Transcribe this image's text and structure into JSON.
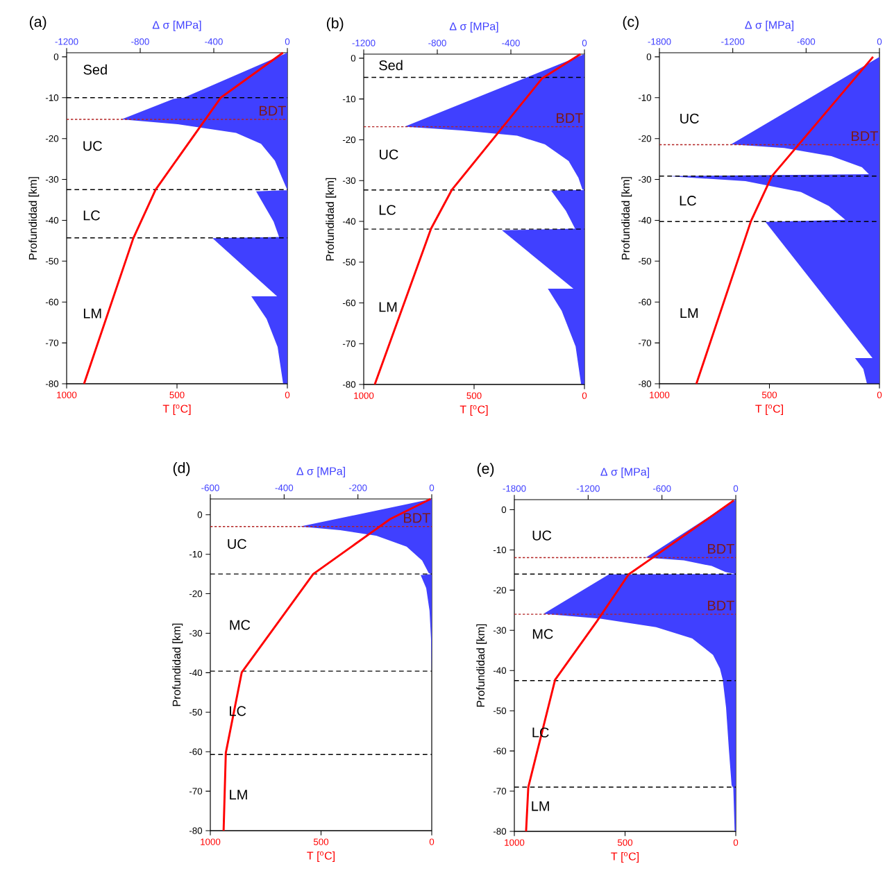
{
  "chart_data": [
    {
      "type": "area",
      "title": "(a)",
      "xlabel": "T [$^{o}$C]",
      "x2label": "Δ σ [MPa]",
      "ylabel": "Profundidad [km]",
      "xlim": [
        1000,
        0
      ],
      "xticks": [
        1000,
        500,
        0
      ],
      "x2lim": [
        -1200,
        0
      ],
      "x2ticks": [
        -1200,
        -800,
        -400,
        0
      ],
      "ylim": [
        -80,
        1
      ],
      "yticks": [
        -80,
        -70,
        -60,
        -50,
        -40,
        -30,
        -20,
        -10,
        0
      ],
      "series": [
        {
          "axis": "x2",
          "color": "#4040ff",
          "x": [
            0,
            -563,
            -619,
            -902,
            -596,
            -279,
            -143,
            -68,
            -30,
            0,
            -170,
            -75,
            -45,
            -407,
            -56,
            -196,
            -113,
            -53,
            -23,
            0
          ],
          "values": [
            1,
            -10,
            -10.3,
            -15.3,
            -16.5,
            -18.6,
            -21.3,
            -25.4,
            -29.5,
            -32.6,
            -32.9,
            -40.3,
            -44.1,
            -44.4,
            -58.6,
            -58.6,
            -64.1,
            -71,
            -80,
            -80
          ]
        },
        {
          "type": "line",
          "color": "#ff0000",
          "x": [
            20,
            302,
            597,
            698,
            921
          ],
          "values": [
            1,
            -10,
            -32.5,
            -44.4,
            -80
          ]
        }
      ],
      "ref_lines": [
        {
          "axis": "y",
          "value": -10,
          "color": "#000000",
          "line_style": "dashed"
        },
        {
          "axis": "y",
          "value": -15.3,
          "label": "BDT",
          "color": "#b22222",
          "line_style": "dotted"
        },
        {
          "axis": "y",
          "value": -32.5,
          "color": "#000000",
          "line_style": "dashed"
        },
        {
          "axis": "y",
          "value": -44.3,
          "color": "#000000",
          "line_style": "dashed"
        }
      ],
      "annotations": [
        "Sed",
        "UC",
        "LC",
        "LM"
      ]
    },
    {
      "type": "area",
      "title": "(b)",
      "xlabel": "T [$^{o}$C]",
      "x2label": "Δ σ [MPa]",
      "ylabel": "Profundidad [km]",
      "xlim": [
        1000,
        0
      ],
      "xticks": [
        1000,
        500,
        0
      ],
      "x2lim": [
        -1200,
        0
      ],
      "x2ticks": [
        -1200,
        -800,
        -400,
        0
      ],
      "ylim": [
        -80,
        1
      ],
      "yticks": [
        -80,
        -70,
        -60,
        -50,
        -40,
        -30,
        -20,
        -10,
        0
      ],
      "series": [
        {
          "axis": "x2",
          "color": "#4040ff",
          "x": [
            0,
            -978,
            -668,
            -366,
            -215,
            -86,
            -33,
            -11,
            0,
            -181,
            -101,
            -51,
            -449,
            -60,
            -199,
            -124,
            -48,
            -18,
            0
          ],
          "values": [
            1,
            -16.8,
            -17.7,
            -19,
            -21.1,
            -25.2,
            -29.3,
            -32.2,
            -32.3,
            -32.5,
            -37.4,
            -41.8,
            -42.2,
            -56.5,
            -56.5,
            -61.9,
            -70.7,
            -80,
            -80
          ]
        },
        {
          "type": "line",
          "color": "#ff0000",
          "x": [
            18,
            191,
            601,
            695,
            950
          ],
          "values": [
            1,
            -4.9,
            -32.3,
            -41.8,
            -80
          ]
        }
      ],
      "ref_lines": [
        {
          "axis": "y",
          "value": -4.7,
          "color": "#000000",
          "line_style": "dashed"
        },
        {
          "axis": "y",
          "value": -16.8,
          "label": "BDT",
          "color": "#b22222",
          "line_style": "dotted"
        },
        {
          "axis": "y",
          "value": -32.3,
          "color": "#000000",
          "line_style": "dashed"
        },
        {
          "axis": "y",
          "value": -41.9,
          "color": "#000000",
          "line_style": "dashed"
        }
      ],
      "annotations": [
        "Sed",
        "UC",
        "LC",
        "LM"
      ]
    },
    {
      "type": "area",
      "title": "(c)",
      "xlabel": "T [$^{o}$C]",
      "x2label": "Δ σ [MPa]",
      "ylabel": "Profundidad [km]",
      "xlim": [
        1000,
        0
      ],
      "xticks": [
        1000,
        500,
        0
      ],
      "x2lim": [
        -1800,
        0
      ],
      "x2ticks": [
        -1800,
        -1200,
        -600,
        0
      ],
      "ylim": [
        -80,
        1
      ],
      "yticks": [
        -80,
        -70,
        -60,
        -50,
        -40,
        -30,
        -20,
        -10,
        0
      ],
      "series": [
        {
          "axis": "x2",
          "color": "#4040ff",
          "x": [
            0,
            -1214,
            -779,
            -393,
            -143,
            -86,
            -1732,
            -1096,
            -642,
            -415,
            -279,
            -933,
            -57,
            -200,
            -132,
            -102,
            0
          ],
          "values": [
            0,
            -21.4,
            -22.3,
            -24.3,
            -27,
            -28.7,
            -29.2,
            -30.4,
            -33.1,
            -36.5,
            -39.9,
            -40.4,
            -73.7,
            -73.7,
            -76.4,
            -80,
            -80
          ]
        },
        {
          "type": "line",
          "color": "#ff0000",
          "x": [
            29,
            489,
            584,
            832
          ],
          "values": [
            0,
            -29.2,
            -40.2,
            -80
          ]
        }
      ],
      "ref_lines": [
        {
          "axis": "y",
          "value": -21.5,
          "label": "BDT",
          "color": "#b22222",
          "line_style": "dotted"
        },
        {
          "axis": "y",
          "value": -29.2,
          "color": "#000000",
          "line_style": "dashed"
        },
        {
          "axis": "y",
          "value": -40.3,
          "color": "#000000",
          "line_style": "dashed"
        }
      ],
      "annotations": [
        "UC",
        "LC",
        "LM"
      ]
    },
    {
      "type": "area",
      "title": "(d)",
      "xlabel": "T [$^{o}$C]",
      "x2label": "Δ σ [MPa]",
      "ylabel": "Profundidad [km]",
      "xlim": [
        1000,
        0
      ],
      "xticks": [
        1000,
        500,
        0
      ],
      "x2lim": [
        -600,
        0
      ],
      "x2ticks": [
        -600,
        -400,
        -200,
        0
      ],
      "ylim": [
        -80,
        4
      ],
      "yticks": [
        -80,
        -70,
        -60,
        -50,
        -40,
        -30,
        -20,
        -10,
        0
      ],
      "series": [
        {
          "axis": "x2",
          "color": "#4040ff",
          "x": [
            0,
            -357,
            -248,
            -150,
            -68,
            -26,
            -8,
            0,
            -30,
            -15,
            -6,
            -2,
            0
          ],
          "values": [
            4,
            -3,
            -3.9,
            -5.3,
            -8.1,
            -11.6,
            -14.8,
            -15,
            -15.3,
            -18.6,
            -24.3,
            -31.3,
            -40
          ]
        },
        {
          "type": "line",
          "color": "#ff0000",
          "x": [
            5,
            188,
            535,
            858,
            930,
            940
          ],
          "values": [
            4,
            -1.1,
            -15,
            -39.9,
            -60.3,
            -80
          ]
        }
      ],
      "ref_lines": [
        {
          "axis": "y",
          "value": -3,
          "label": "BDT",
          "color": "#b22222",
          "line_style": "dotted"
        },
        {
          "axis": "y",
          "value": -15,
          "color": "#000000",
          "line_style": "dashed"
        },
        {
          "axis": "y",
          "value": -39.6,
          "color": "#000000",
          "line_style": "dashed"
        },
        {
          "axis": "y",
          "value": -60.7,
          "color": "#000000",
          "line_style": "dashed"
        }
      ],
      "annotations": [
        "UC",
        "MC",
        "LC",
        "LM"
      ]
    },
    {
      "type": "area",
      "title": "(e)",
      "xlabel": "T [$^{o}$C]",
      "x2label": "Δ σ [MPa]",
      "ylabel": "Profundidad [km]",
      "xlim": [
        1000,
        0
      ],
      "xticks": [
        1000,
        500,
        0
      ],
      "x2lim": [
        -1800,
        0
      ],
      "x2ticks": [
        -1800,
        -1200,
        -600,
        0
      ],
      "ylim": [
        -80,
        2.5
      ],
      "yticks": [
        -80,
        -70,
        -60,
        -50,
        -40,
        -30,
        -20,
        -10,
        0
      ],
      "series": [
        {
          "axis": "x2",
          "color": "#4040ff",
          "x": [
            0,
            -732,
            -422,
            -196,
            -84,
            0,
            -1032,
            -1563,
            -1100,
            -648,
            -354,
            -185,
            -129,
            -106,
            -79,
            -56,
            -34,
            -20,
            -9,
            0
          ],
          "values": [
            2.5,
            -11.9,
            -12.6,
            -14,
            -15.5,
            -16,
            -16.1,
            -25.9,
            -27.1,
            -29.2,
            -32,
            -36.1,
            -39.5,
            -42.3,
            -49.2,
            -59.6,
            -68.5,
            -69.2,
            -80,
            -80
          ]
        },
        {
          "type": "line",
          "color": "#ff0000",
          "x": [
            9,
            372,
            484,
            628,
            816,
            937,
            947
          ],
          "values": [
            2.3,
            -11.8,
            -16.1,
            -27.8,
            -42.3,
            -69,
            -80
          ]
        }
      ],
      "ref_lines": [
        {
          "axis": "y",
          "value": -11.9,
          "label": "BDT",
          "color": "#b22222",
          "line_style": "dotted"
        },
        {
          "axis": "y",
          "value": -16,
          "color": "#000000",
          "line_style": "dashed"
        },
        {
          "axis": "y",
          "value": -26,
          "label": "BDT",
          "color": "#b22222",
          "line_style": "dotted"
        },
        {
          "axis": "y",
          "value": -42.5,
          "color": "#000000",
          "line_style": "dashed"
        },
        {
          "axis": "y",
          "value": -69,
          "color": "#000000",
          "line_style": "dashed"
        }
      ],
      "annotations": [
        "UC",
        "MC",
        "LC",
        "LM"
      ]
    }
  ]
}
